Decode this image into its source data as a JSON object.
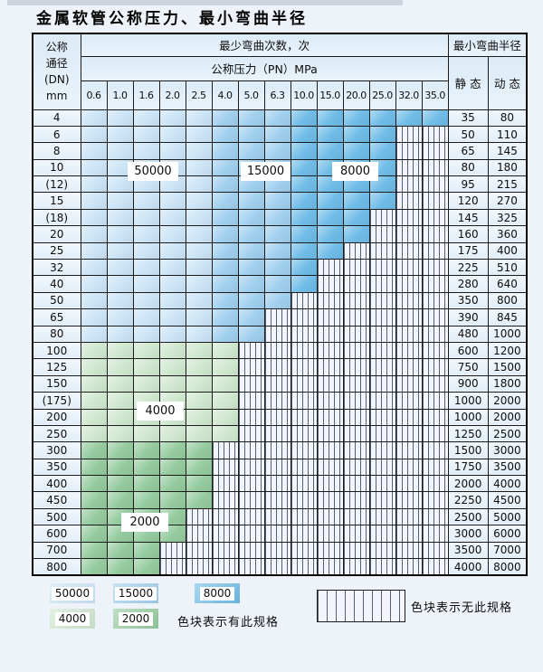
{
  "title": "金属软管公称压力、最小弯曲半径",
  "colors": {
    "c50000": "#cbe4f6",
    "c15000": "#a0cfee",
    "c8000": "#6fbce7",
    "c4000": "#cfe7cf",
    "c2000": "#94cb9e"
  },
  "table": {
    "corner_header": {
      "line1": "公称",
      "line2": "通径",
      "line3": "(DN)",
      "line4": "mm"
    },
    "cycles_header": "最少弯曲次数，次",
    "pressure_header": "公称压力（PN）MPa",
    "radius_header": "最小弯曲半径",
    "static_header": "静 态",
    "dynamic_header": "动 态",
    "pressure_columns": [
      "0.6",
      "1.0",
      "1.6",
      "2.0",
      "2.5",
      "4.0",
      "5.0",
      "6.3",
      "10.0",
      "15.0",
      "20.0",
      "25.0",
      "32.0",
      "35.0"
    ],
    "blue_bands": [
      {
        "cycles": "50000",
        "col_start": 0,
        "col_end": 4
      },
      {
        "cycles": "15000",
        "col_start": 5,
        "col_end": 7
      },
      {
        "cycles": "8000",
        "col_start": 8,
        "col_end": 13
      }
    ],
    "rows": [
      {
        "dn": "4",
        "colored_cols": 14,
        "group": "blue",
        "static": "35",
        "dynamic": "80"
      },
      {
        "dn": "6",
        "colored_cols": 12,
        "group": "blue",
        "static": "50",
        "dynamic": "110"
      },
      {
        "dn": "8",
        "colored_cols": 12,
        "group": "blue",
        "static": "65",
        "dynamic": "145"
      },
      {
        "dn": "10",
        "colored_cols": 12,
        "group": "blue",
        "static": "80",
        "dynamic": "180"
      },
      {
        "dn": "(12)",
        "colored_cols": 12,
        "group": "blue",
        "static": "95",
        "dynamic": "215"
      },
      {
        "dn": "15",
        "colored_cols": 12,
        "group": "blue",
        "static": "120",
        "dynamic": "270"
      },
      {
        "dn": "(18)",
        "colored_cols": 11,
        "group": "blue",
        "static": "145",
        "dynamic": "325"
      },
      {
        "dn": "20",
        "colored_cols": 11,
        "group": "blue",
        "static": "160",
        "dynamic": "360"
      },
      {
        "dn": "25",
        "colored_cols": 10,
        "group": "blue",
        "static": "175",
        "dynamic": "400"
      },
      {
        "dn": "32",
        "colored_cols": 9,
        "group": "blue",
        "static": "225",
        "dynamic": "510"
      },
      {
        "dn": "40",
        "colored_cols": 9,
        "group": "blue",
        "static": "280",
        "dynamic": "640"
      },
      {
        "dn": "50",
        "colored_cols": 8,
        "group": "blue",
        "static": "350",
        "dynamic": "800"
      },
      {
        "dn": "65",
        "colored_cols": 7,
        "group": "blue",
        "static": "390",
        "dynamic": "845"
      },
      {
        "dn": "80",
        "colored_cols": 7,
        "group": "blue",
        "static": "480",
        "dynamic": "1000"
      },
      {
        "dn": "100",
        "colored_cols": 6,
        "group": "4000",
        "static": "600",
        "dynamic": "1200"
      },
      {
        "dn": "125",
        "colored_cols": 6,
        "group": "4000",
        "static": "750",
        "dynamic": "1500"
      },
      {
        "dn": "150",
        "colored_cols": 6,
        "group": "4000",
        "static": "900",
        "dynamic": "1800"
      },
      {
        "dn": "(175)",
        "colored_cols": 6,
        "group": "4000",
        "static": "1000",
        "dynamic": "2000"
      },
      {
        "dn": "200",
        "colored_cols": 6,
        "group": "4000",
        "static": "1000",
        "dynamic": "2000"
      },
      {
        "dn": "250",
        "colored_cols": 6,
        "group": "4000",
        "static": "1250",
        "dynamic": "2500"
      },
      {
        "dn": "300",
        "colored_cols": 5,
        "group": "2000",
        "static": "1500",
        "dynamic": "3000"
      },
      {
        "dn": "350",
        "colored_cols": 5,
        "group": "2000",
        "static": "1750",
        "dynamic": "3500"
      },
      {
        "dn": "400",
        "colored_cols": 5,
        "group": "2000",
        "static": "2000",
        "dynamic": "4000"
      },
      {
        "dn": "450",
        "colored_cols": 5,
        "group": "2000",
        "static": "2250",
        "dynamic": "4500"
      },
      {
        "dn": "500",
        "colored_cols": 4,
        "group": "2000",
        "static": "2500",
        "dynamic": "5000"
      },
      {
        "dn": "600",
        "colored_cols": 4,
        "group": "2000",
        "static": "3000",
        "dynamic": "6000"
      },
      {
        "dn": "700",
        "colored_cols": 3,
        "group": "2000",
        "static": "3500",
        "dynamic": "7000"
      },
      {
        "dn": "800",
        "colored_cols": 3,
        "group": "2000",
        "static": "4000",
        "dynamic": "8000"
      }
    ],
    "overlay_labels": {
      "l50000": "50000",
      "l15000": "15000",
      "l8000": "8000",
      "l4000": "4000",
      "l2000": "2000"
    }
  },
  "legend": {
    "l50000": "50000",
    "l15000": "15000",
    "l8000": "8000",
    "l4000": "4000",
    "l2000": "2000",
    "available_text": "色块表示有此规格",
    "none_text": "色块表示无此规格"
  }
}
